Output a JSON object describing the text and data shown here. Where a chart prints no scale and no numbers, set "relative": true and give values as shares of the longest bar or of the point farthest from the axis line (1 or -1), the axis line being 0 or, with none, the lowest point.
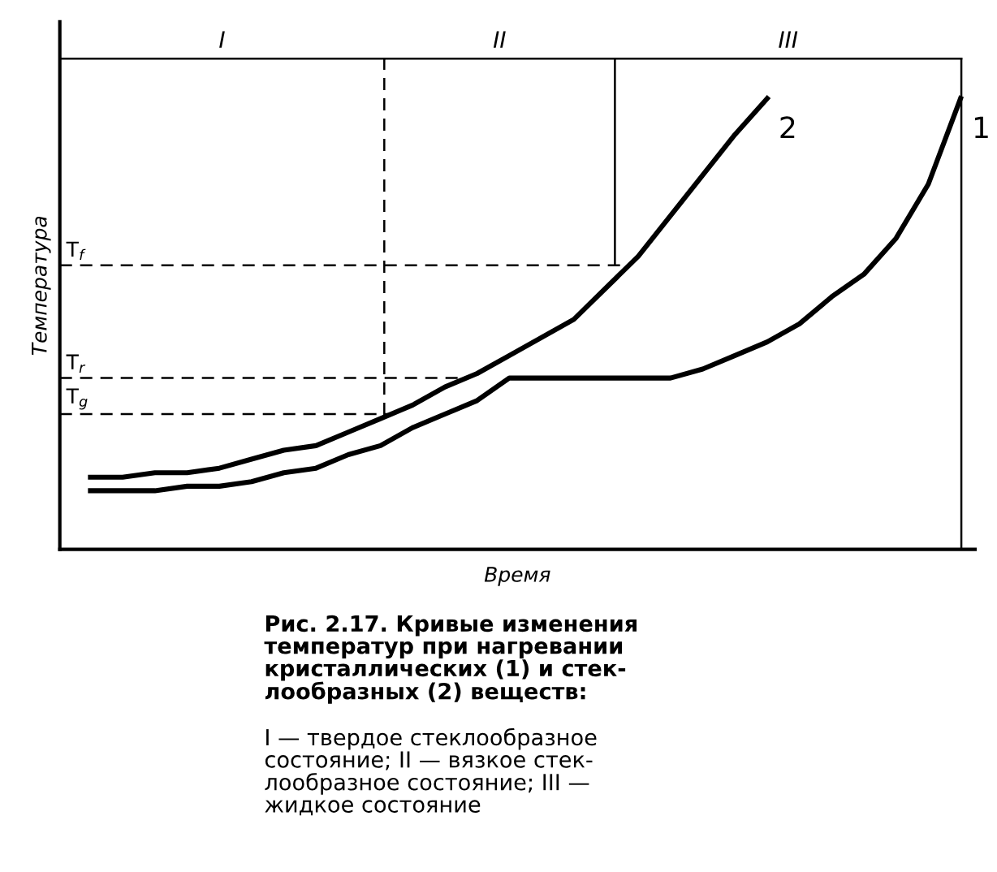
{
  "chart_data": {
    "type": "line",
    "relative": true,
    "xlabel": "Время",
    "ylabel": "Температура",
    "categories": [
      null,
      null,
      null,
      null,
      null,
      null,
      null,
      null,
      null,
      null,
      null,
      null,
      null,
      null,
      null,
      null,
      null,
      null,
      null,
      null,
      null,
      null,
      null,
      null,
      null,
      null,
      null,
      null
    ],
    "series": [
      {
        "name": "1",
        "color": "#000000",
        "values": [
          0.13,
          0.13,
          0.13,
          0.14,
          0.14,
          0.15,
          0.17,
          0.18,
          0.21,
          0.23,
          0.27,
          0.3,
          0.33,
          0.38,
          0.38,
          0.38,
          0.38,
          0.38,
          0.38,
          0.4,
          0.43,
          0.46,
          0.5,
          0.56,
          0.61,
          0.69,
          0.81,
          1.0
        ]
      },
      {
        "name": "2",
        "color": "#000000",
        "values": [
          0.16,
          0.16,
          0.17,
          0.17,
          0.18,
          0.2,
          0.22,
          0.23,
          0.26,
          0.29,
          0.32,
          0.36,
          0.39,
          0.43,
          0.47,
          0.51,
          0.58,
          0.65,
          0.74,
          0.83,
          0.92,
          1.0,
          null,
          null,
          null,
          null,
          null,
          null
        ]
      }
    ],
    "ref_lines": [
      {
        "axis": "y",
        "value": 0.63,
        "label": "T$_{f}$",
        "line_style": "dashed",
        "color": "#000000"
      },
      {
        "axis": "y",
        "value": 0.38,
        "label": "T$_{r}$",
        "line_style": "dashed",
        "color": "#000000"
      },
      {
        "axis": "y",
        "value": 0.3,
        "label": "T$_{g}$",
        "line_style": "dashed",
        "color": "#000000"
      }
    ],
    "annotations": [
      "I",
      "II",
      "III",
      "Рис. 2.17. Кривые изменения\nтемператур при нагревании\nкристаллических (1) и стек-\nлообразных (2) веществ:",
      "I — твердое стеклообразное\nсостояние; II — вязкое стек-\nлообразное состояние; III —\nжидкое состояние"
    ],
    "grid": false
  }
}
